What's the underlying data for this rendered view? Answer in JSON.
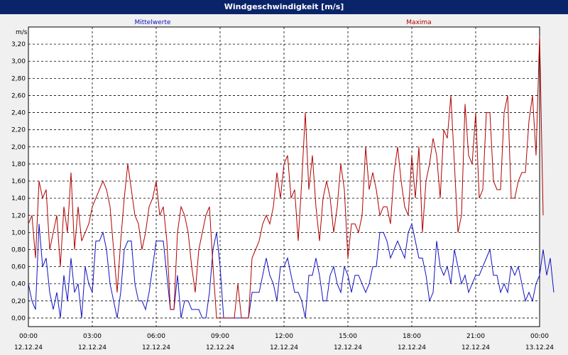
{
  "window": {
    "title": "Windgeschwindigkeit [m/s]"
  },
  "colors": {
    "mean": "#1010c0",
    "max": "#b00000",
    "grid": "#000000"
  },
  "chart_data": {
    "type": "line",
    "title": "Windgeschwindigkeit [m/s]",
    "ylabel": "m/s",
    "ylim": [
      -0.1,
      3.4
    ],
    "xlim_hours": [
      0,
      24
    ],
    "grid": true,
    "y_ticks": [
      "0,00",
      "0,20",
      "0,40",
      "0,60",
      "0,80",
      "1,00",
      "1,20",
      "1,40",
      "1,60",
      "1,80",
      "2,00",
      "2,20",
      "2,40",
      "2,60",
      "2,80",
      "3,00",
      "3,20"
    ],
    "x_ticks": [
      {
        "time": "00:00",
        "date": "12.12.24"
      },
      {
        "time": "03:00",
        "date": "12.12.24"
      },
      {
        "time": "06:00",
        "date": "12.12.24"
      },
      {
        "time": "09:00",
        "date": "12.12.24"
      },
      {
        "time": "12:00",
        "date": "12.12.24"
      },
      {
        "time": "15:00",
        "date": "12.12.24"
      },
      {
        "time": "18:00",
        "date": "12.12.24"
      },
      {
        "time": "21:00",
        "date": "12.12.24"
      },
      {
        "time": "00:00",
        "date": "13.12.24"
      }
    ],
    "series": [
      {
        "name": "Mittelwerte",
        "interval_minutes": 10,
        "values": [
          0.4,
          0.2,
          0.1,
          1.1,
          0.6,
          0.7,
          0.3,
          0.1,
          0.3,
          0.0,
          0.5,
          0.2,
          0.7,
          0.3,
          0.4,
          0.0,
          0.6,
          0.4,
          0.3,
          0.9,
          0.9,
          1.0,
          0.8,
          0.4,
          0.2,
          0.0,
          0.3,
          0.8,
          0.9,
          0.9,
          0.4,
          0.2,
          0.2,
          0.1,
          0.3,
          0.6,
          0.9,
          0.9,
          0.9,
          0.5,
          0.1,
          0.1,
          0.5,
          0.0,
          0.2,
          0.2,
          0.1,
          0.1,
          0.1,
          0.0,
          0.0,
          0.3,
          0.8,
          1.0,
          0.6,
          0.0,
          0.0,
          0.0,
          0.0,
          0.0,
          0.0,
          0.0,
          0.0,
          0.3,
          0.3,
          0.3,
          0.5,
          0.7,
          0.5,
          0.4,
          0.2,
          0.6,
          0.6,
          0.7,
          0.5,
          0.3,
          0.3,
          0.2,
          0.0,
          0.5,
          0.5,
          0.7,
          0.5,
          0.2,
          0.2,
          0.5,
          0.6,
          0.4,
          0.3,
          0.6,
          0.5,
          0.3,
          0.5,
          0.5,
          0.4,
          0.3,
          0.4,
          0.6,
          0.6,
          1.0,
          1.0,
          0.9,
          0.7,
          0.8,
          0.9,
          0.8,
          0.7,
          1.0,
          1.1,
          0.9,
          0.7,
          0.7,
          0.5,
          0.2,
          0.3,
          0.9,
          0.6,
          0.5,
          0.6,
          0.4,
          0.8,
          0.6,
          0.4,
          0.5,
          0.3,
          0.4,
          0.5,
          0.5,
          0.6,
          0.7,
          0.8,
          0.5,
          0.5,
          0.3,
          0.4,
          0.3,
          0.6,
          0.5,
          0.6,
          0.4,
          0.2,
          0.3,
          0.2,
          0.4,
          0.5,
          0.8,
          0.5,
          0.7,
          0.3
        ]
      },
      {
        "name": "Maxima",
        "interval_minutes": 10,
        "values": [
          1.1,
          1.2,
          0.7,
          1.6,
          1.4,
          1.5,
          0.8,
          1.0,
          1.2,
          0.6,
          1.3,
          1.0,
          1.7,
          0.8,
          1.3,
          0.9,
          1.0,
          1.1,
          1.3,
          1.4,
          1.5,
          1.6,
          1.5,
          1.3,
          0.8,
          0.3,
          0.9,
          1.4,
          1.8,
          1.5,
          1.2,
          1.1,
          0.8,
          1.0,
          1.3,
          1.4,
          1.6,
          1.2,
          1.3,
          0.9,
          0.1,
          0.1,
          1.0,
          1.3,
          1.2,
          1.0,
          0.6,
          0.3,
          0.8,
          1.0,
          1.2,
          1.3,
          0.6,
          0.0,
          0.0,
          0.0,
          0.0,
          0.0,
          0.0,
          0.4,
          0.0,
          0.0,
          0.0,
          0.7,
          0.8,
          0.9,
          1.1,
          1.2,
          1.1,
          1.3,
          1.7,
          1.4,
          1.8,
          1.9,
          1.4,
          1.5,
          0.9,
          1.6,
          2.4,
          1.5,
          1.9,
          1.3,
          0.9,
          1.4,
          1.6,
          1.4,
          1.0,
          1.3,
          1.8,
          1.5,
          0.7,
          1.1,
          1.1,
          1.0,
          1.2,
          2.0,
          1.5,
          1.7,
          1.5,
          1.2,
          1.3,
          1.3,
          1.1,
          1.7,
          2.0,
          1.6,
          1.3,
          1.2,
          1.9,
          1.4,
          2.0,
          1.0,
          1.6,
          1.8,
          2.1,
          1.9,
          1.4,
          2.2,
          2.1,
          2.6,
          1.8,
          1.0,
          1.2,
          2.5,
          1.9,
          1.8,
          2.4,
          1.4,
          1.5,
          2.4,
          2.4,
          1.6,
          1.5,
          1.5,
          2.4,
          2.6,
          1.4,
          1.4,
          1.6,
          1.7,
          1.7,
          2.3,
          2.6,
          1.9,
          3.3,
          1.2
        ]
      }
    ]
  }
}
